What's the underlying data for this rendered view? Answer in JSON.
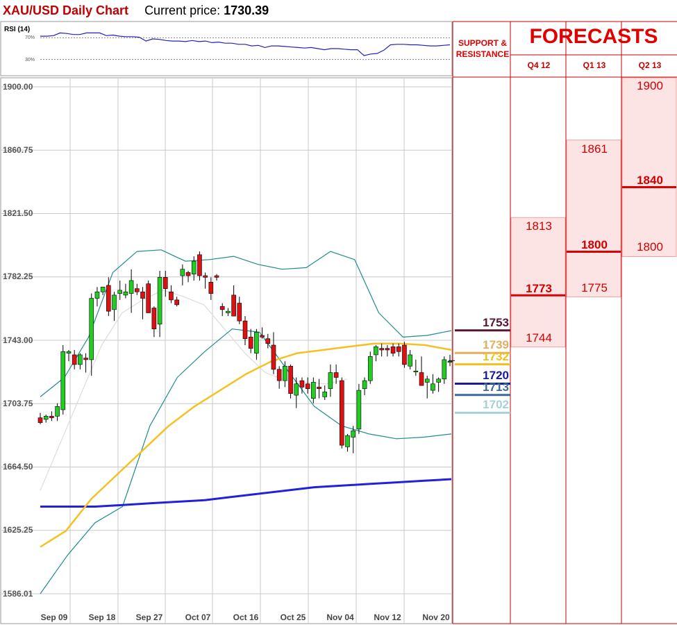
{
  "header": {
    "title": "XAU/USD Daily Chart",
    "price_label": "Current price:",
    "price_value": "1730.39"
  },
  "rsi": {
    "label": "RSI (14)",
    "levels": [
      "70%",
      "30%"
    ],
    "values": [
      73,
      73,
      74,
      79,
      78,
      76,
      76,
      79,
      79,
      79,
      74,
      75,
      73,
      72,
      72,
      71,
      64,
      68,
      67,
      65,
      64,
      64,
      63,
      65,
      63,
      64,
      61,
      62,
      60,
      60,
      58,
      58,
      55,
      56,
      52,
      55,
      55,
      54,
      53,
      52,
      51,
      52,
      50,
      48,
      50,
      50,
      49,
      48,
      48,
      37,
      40,
      41,
      47,
      57,
      58,
      58,
      57,
      57,
      56,
      55,
      55,
      56,
      57
    ]
  },
  "chart_data": {
    "type": "candlestick",
    "y_ticks": [
      "1900.00",
      "1860.75",
      "1821.50",
      "1782.25",
      "1743.00",
      "1703.75",
      "1664.50",
      "1625.25",
      "1586.01"
    ],
    "ylim": [
      1586.01,
      1900.0
    ],
    "x_ticks": [
      "Sep 09",
      "Sep 18",
      "Sep 27",
      "Oct 07",
      "Oct 16",
      "Oct 25",
      "Nov 04",
      "Nov 12",
      "Nov 20"
    ],
    "current_price": 1730.39,
    "candles": [
      [
        1695,
        1698,
        1691,
        1692
      ],
      [
        1694,
        1697,
        1692,
        1696
      ],
      [
        1696,
        1699,
        1693,
        1695
      ],
      [
        1696,
        1704,
        1693,
        1702
      ],
      [
        1700,
        1740,
        1697,
        1736
      ],
      [
        1735,
        1737,
        1730,
        1736
      ],
      [
        1734,
        1737,
        1725,
        1728
      ],
      [
        1728,
        1735,
        1725,
        1734
      ],
      [
        1732,
        1735,
        1723,
        1731
      ],
      [
        1731,
        1772,
        1721,
        1769
      ],
      [
        1769,
        1776,
        1764,
        1773
      ],
      [
        1773,
        1776,
        1771,
        1776
      ],
      [
        1777,
        1782,
        1758,
        1761
      ],
      [
        1762,
        1773,
        1755,
        1771
      ],
      [
        1772,
        1780,
        1768,
        1774
      ],
      [
        1771,
        1778,
        1769,
        1773
      ],
      [
        1772,
        1787,
        1760,
        1780
      ],
      [
        1775,
        1778,
        1771,
        1773
      ],
      [
        1773,
        1776,
        1756,
        1769
      ],
      [
        1778,
        1780,
        1760,
        1760
      ],
      [
        1763,
        1764,
        1745,
        1750
      ],
      [
        1753,
        1786,
        1745,
        1782
      ],
      [
        1782,
        1786,
        1770,
        1775
      ],
      [
        1773,
        1777,
        1766,
        1768
      ],
      [
        1768,
        1770,
        1764,
        1765
      ],
      [
        1783,
        1790,
        1777,
        1787
      ],
      [
        1785,
        1786,
        1779,
        1783
      ],
      [
        1784,
        1795,
        1780,
        1792
      ],
      [
        1796,
        1798,
        1780,
        1783
      ],
      [
        1783,
        1785,
        1775,
        1782
      ],
      [
        1779,
        1782,
        1768,
        1772
      ],
      [
        1783,
        1784,
        1780,
        1782
      ],
      [
        1764,
        1766,
        1758,
        1762
      ],
      [
        1760,
        1763,
        1758,
        1761
      ],
      [
        1771,
        1777,
        1758,
        1758
      ],
      [
        1766,
        1770,
        1753,
        1755
      ],
      [
        1755,
        1758,
        1740,
        1744
      ],
      [
        1745,
        1750,
        1735,
        1738
      ],
      [
        1735,
        1750,
        1731,
        1748
      ],
      [
        1746,
        1751,
        1744,
        1745
      ],
      [
        1744,
        1747,
        1738,
        1741
      ],
      [
        1740,
        1748,
        1722,
        1725
      ],
      [
        1725,
        1727,
        1713,
        1718
      ],
      [
        1718,
        1730,
        1714,
        1727
      ],
      [
        1727,
        1728,
        1707,
        1710
      ],
      [
        1709,
        1720,
        1701,
        1716
      ],
      [
        1718,
        1720,
        1710,
        1714
      ],
      [
        1716,
        1720,
        1710,
        1713
      ],
      [
        1707,
        1720,
        1704,
        1717
      ],
      [
        1714,
        1719,
        1707,
        1713
      ],
      [
        1708,
        1715,
        1706,
        1711
      ],
      [
        1713,
        1728,
        1708,
        1723
      ],
      [
        1723,
        1728,
        1716,
        1720
      ],
      [
        1718,
        1720,
        1676,
        1678
      ],
      [
        1677,
        1685,
        1674,
        1684
      ],
      [
        1683,
        1690,
        1673,
        1687
      ],
      [
        1688,
        1716,
        1685,
        1712
      ],
      [
        1713,
        1720,
        1709,
        1718
      ],
      [
        1718,
        1736,
        1716,
        1733
      ],
      [
        1734,
        1740,
        1730,
        1739
      ],
      [
        1738,
        1741,
        1733,
        1737
      ],
      [
        1738,
        1740,
        1733,
        1737
      ],
      [
        1739,
        1741,
        1733,
        1735
      ],
      [
        1739,
        1741,
        1733,
        1736
      ],
      [
        1740,
        1742,
        1726,
        1728
      ],
      [
        1727,
        1737,
        1725,
        1734
      ],
      [
        1724,
        1731,
        1721,
        1724
      ],
      [
        1723,
        1733,
        1715,
        1715
      ],
      [
        1717,
        1721,
        1707,
        1719
      ],
      [
        1712,
        1722,
        1710,
        1716
      ],
      [
        1717,
        1720,
        1711,
        1719
      ],
      [
        1719,
        1733,
        1716,
        1731
      ],
      [
        1730,
        1734,
        1727,
        1730
      ]
    ],
    "sma_long": [
      1640,
      1640,
      1640,
      1641,
      1642,
      1643,
      1644,
      1646,
      1648,
      1650,
      1652,
      1653,
      1654,
      1655,
      1656,
      1657
    ],
    "sma_mid": [
      1615,
      1625,
      1645,
      1660,
      1675,
      1690,
      1702,
      1712,
      1722,
      1730,
      1735,
      1737,
      1739,
      1741,
      1741,
      1740,
      1737
    ],
    "bb_upper": [
      1708,
      1720,
      1745,
      1785,
      1798,
      1799,
      1792,
      1793,
      1795,
      1790,
      1787,
      1788,
      1798,
      1793,
      1760,
      1745,
      1746,
      1749
    ],
    "bb_mid": [
      1650,
      1680,
      1710,
      1740,
      1760,
      1768,
      1774,
      1770,
      1765,
      1750,
      1735,
      1723,
      1718,
      1717,
      1716,
      1719
    ],
    "bb_lower": [
      1586,
      1610,
      1630,
      1640,
      1690,
      1720,
      1736,
      1750,
      1748,
      1725,
      1702,
      1690,
      1685,
      1682,
      1683,
      1685
    ]
  },
  "sr": {
    "header_line1": "SUPPORT &",
    "header_line2": "RESISTANCE",
    "levels": [
      {
        "label": "1753",
        "value": 1753,
        "color": "#5a1535"
      },
      {
        "label": "1739",
        "value": 1739,
        "color": "#e0b060"
      },
      {
        "label": "1732",
        "value": 1732,
        "color": "#f0c020"
      },
      {
        "label": "1720",
        "value": 1720,
        "color": "#1a1aa0"
      },
      {
        "label": "1713",
        "value": 1713,
        "color": "#3a6aa0"
      },
      {
        "label": "1702",
        "value": 1702,
        "color": "#a8d0d8"
      }
    ]
  },
  "forecasts": {
    "title": "FORECASTS",
    "columns": [
      {
        "quarter": "Q4 12",
        "high": "1813",
        "avg": "1773",
        "low": "1744",
        "high_v": 1813,
        "avg_v": 1773,
        "low_v": 1744
      },
      {
        "quarter": "Q1 13",
        "high": "1861",
        "avg": "1800",
        "low": "1775",
        "high_v": 1861,
        "avg_v": 1800,
        "low_v": 1775
      },
      {
        "quarter": "Q2 13",
        "high": "1900",
        "avg": "1840",
        "low": "1800",
        "high_v": 1900,
        "avg_v": 1840,
        "low_v": 1800
      }
    ]
  }
}
